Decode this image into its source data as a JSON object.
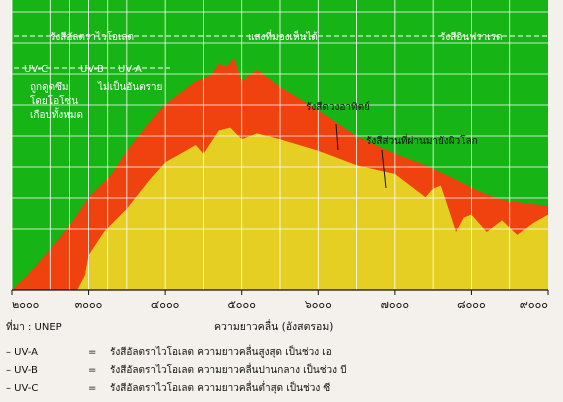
{
  "colors": {
    "background_band": "#16b414",
    "solar_radiation": "#f0420e",
    "surface_radiation": "#e4cf22",
    "grid": "#ffffff",
    "paper": "#f4f1ec"
  },
  "bands": {
    "ultraviolet": "รังสีอัลตราไวโอเลต",
    "visible": "แสงที่มองเห็นได้",
    "infrared": "รังสีอินฟราเรด",
    "uv_c": "UV-C",
    "uv_b": "UV-B",
    "uv_a": "UV-A",
    "absorbed_line1": "ถูกดูดซึม",
    "absorbed_line2": "โดยโอโซน",
    "absorbed_line3": "เกือบทั้งหมด",
    "harmless": "ไม่เป็นอันตราย"
  },
  "annotations": {
    "solar": "รังสีดวงอาทิตย์",
    "surface": "รังสีส่วนที่ผ่านมายังผิวโลก"
  },
  "footer": {
    "source": "ที่มา : UNEP",
    "rows": [
      {
        "term": "– UV-A",
        "eq": "=",
        "desc": "รังสีอัลตราไวโอเลต  ความยาวคลื่นสูงสุด เป็นช่วง เอ"
      },
      {
        "term": "– UV-B",
        "eq": "=",
        "desc": "รังสีอัลตราไวโอเลต  ความยาวคลื่นปานกลาง  เป็นช่วง  บี"
      },
      {
        "term": "– UV-C",
        "eq": "=",
        "desc": "รังสีอัลตราไวโอเลต  ความยาวคลื่นต่ำสุด  เป็นช่วง  ซี"
      }
    ]
  },
  "chart_data": {
    "type": "area",
    "xlabel": "ความยาวคลื่น  (อังสตรอม)",
    "xlim": [
      2000,
      9000
    ],
    "x_ticks": [
      2000,
      3000,
      4000,
      5000,
      6000,
      7000,
      8000,
      9000
    ],
    "x_tick_labels": [
      "๒๐๐๐",
      "๓๐๐๐",
      "๔๐๐๐",
      "๕๐๐๐",
      "๖๐๐๐",
      "๗๐๐๐",
      "๘๐๐๐",
      "๙๐๐๐"
    ],
    "ylim": [
      0,
      100
    ],
    "grid": true,
    "series": [
      {
        "name": "รังสีดวงอาทิตย์",
        "points": [
          [
            2000,
            0
          ],
          [
            2200,
            5
          ],
          [
            2500,
            14
          ],
          [
            2800,
            24
          ],
          [
            3000,
            32
          ],
          [
            3300,
            40
          ],
          [
            3500,
            48
          ],
          [
            3800,
            58
          ],
          [
            4000,
            64
          ],
          [
            4200,
            68
          ],
          [
            4400,
            72
          ],
          [
            4600,
            74
          ],
          [
            4700,
            78
          ],
          [
            4800,
            77
          ],
          [
            4900,
            80
          ],
          [
            5000,
            72
          ],
          [
            5200,
            76
          ],
          [
            5500,
            70
          ],
          [
            6000,
            62
          ],
          [
            6500,
            53
          ],
          [
            7000,
            47
          ],
          [
            7400,
            43
          ],
          [
            7800,
            38
          ],
          [
            8100,
            34
          ],
          [
            8400,
            31
          ],
          [
            8700,
            30
          ],
          [
            9000,
            29
          ]
        ]
      },
      {
        "name": "รังสีส่วนที่ผ่านมายังผิวโลก",
        "points": [
          [
            2000,
            0
          ],
          [
            2850,
            0
          ],
          [
            2950,
            5
          ],
          [
            3000,
            12
          ],
          [
            3200,
            20
          ],
          [
            3500,
            28
          ],
          [
            3800,
            38
          ],
          [
            4000,
            44
          ],
          [
            4200,
            47
          ],
          [
            4400,
            50
          ],
          [
            4500,
            47
          ],
          [
            4700,
            55
          ],
          [
            4850,
            56
          ],
          [
            5000,
            52
          ],
          [
            5200,
            54
          ],
          [
            5500,
            52
          ],
          [
            6000,
            48
          ],
          [
            6500,
            43
          ],
          [
            7000,
            40
          ],
          [
            7200,
            36
          ],
          [
            7400,
            32
          ],
          [
            7500,
            35
          ],
          [
            7600,
            36
          ],
          [
            7700,
            28
          ],
          [
            7800,
            20
          ],
          [
            7900,
            25
          ],
          [
            8000,
            26
          ],
          [
            8200,
            20
          ],
          [
            8400,
            24
          ],
          [
            8600,
            19
          ],
          [
            8800,
            23
          ],
          [
            9000,
            26
          ]
        ]
      }
    ]
  }
}
